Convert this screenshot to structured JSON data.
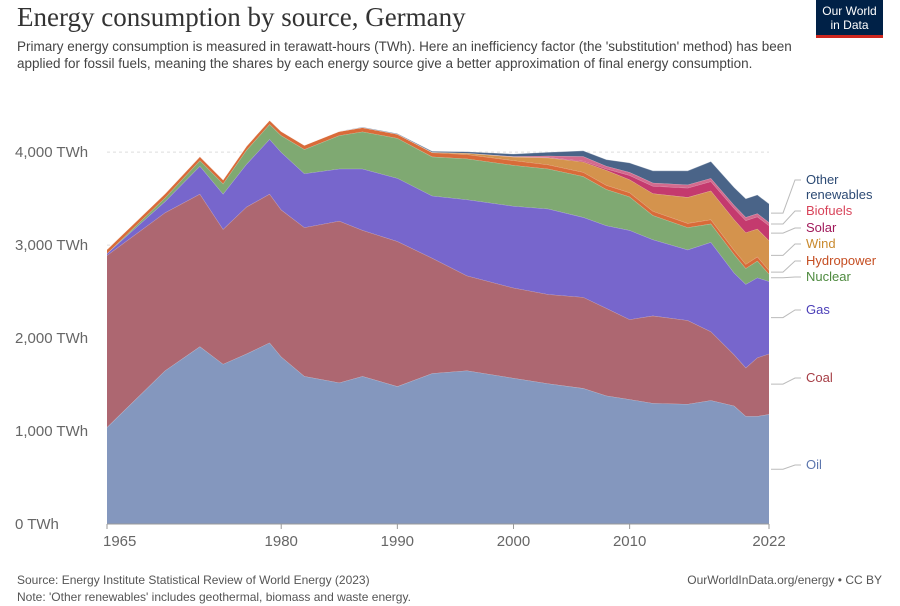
{
  "header": {
    "title": "Energy consumption by source, Germany",
    "subtitle": "Primary energy consumption is measured in terawatt-hours (TWh). Here an inefficiency factor (the 'substitution' method) has been applied for fossil fuels, meaning the shares by each energy source give a better approximation of final energy consumption.",
    "logo_line1": "Our World",
    "logo_line2": "in Data"
  },
  "footer": {
    "source": "Source: Energy Institute Statistical Review of World Energy (2023)",
    "note": "Note: 'Other renewables' includes geothermal, biomass and waste energy.",
    "credit": "OurWorldInData.org/energy • CC BY"
  },
  "chart_data": {
    "type": "area",
    "stacked": true,
    "title": "Energy consumption by source, Germany",
    "ylim": [
      0,
      4400
    ],
    "yticks": [
      0,
      1000,
      2000,
      3000,
      4000
    ],
    "ytick_labels": [
      "0 TWh",
      "1,000 TWh",
      "2,000 TWh",
      "3,000 TWh",
      "4,000 TWh"
    ],
    "xlim": [
      1965,
      2022
    ],
    "xticks": [
      1965,
      1980,
      1990,
      2000,
      2010,
      2022
    ],
    "xtick_labels": [
      "1965",
      "1980",
      "1990",
      "2000",
      "2010",
      "2022"
    ],
    "grid": "horizontal dashed",
    "legend": "right, labels at series ends",
    "x": [
      1965,
      1970,
      1973,
      1975,
      1977,
      1979,
      1980,
      1982,
      1985,
      1987,
      1990,
      1993,
      1996,
      2000,
      2003,
      2006,
      2008,
      2010,
      2012,
      2015,
      2017,
      2019,
      2020,
      2021,
      2022
    ],
    "series": [
      {
        "name": "Oil",
        "color": "#8497BE",
        "values": [
          1040,
          1650,
          1910,
          1720,
          1830,
          1950,
          1800,
          1590,
          1520,
          1590,
          1480,
          1620,
          1650,
          1570,
          1510,
          1460,
          1380,
          1340,
          1300,
          1290,
          1330,
          1270,
          1160,
          1160,
          1180
        ]
      },
      {
        "name": "Coal",
        "color": "#AD6771",
        "values": [
          1850,
          1700,
          1640,
          1450,
          1580,
          1600,
          1580,
          1600,
          1740,
          1570,
          1560,
          1240,
          1020,
          970,
          960,
          980,
          940,
          860,
          940,
          900,
          740,
          550,
          520,
          630,
          650
        ]
      },
      {
        "name": "Gas",
        "color": "#7766CC",
        "values": [
          20,
          120,
          300,
          380,
          460,
          590,
          620,
          580,
          560,
          660,
          680,
          670,
          820,
          880,
          920,
          860,
          890,
          960,
          820,
          760,
          960,
          880,
          900,
          860,
          780
        ]
      },
      {
        "name": "Nuclear",
        "color": "#7FA972",
        "values": [
          0,
          40,
          60,
          110,
          150,
          160,
          180,
          260,
          360,
          400,
          430,
          420,
          440,
          440,
          430,
          440,
          390,
          360,
          260,
          240,
          200,
          200,
          170,
          180,
          80
        ]
      },
      {
        "name": "Hydropower",
        "color": "#D96B39",
        "values": [
          45,
          45,
          45,
          45,
          45,
          45,
          45,
          45,
          45,
          45,
          45,
          45,
          45,
          50,
          45,
          45,
          45,
          45,
          45,
          45,
          45,
          45,
          45,
          45,
          40
        ]
      },
      {
        "name": "Wind",
        "color": "#D4934D",
        "values": [
          0,
          0,
          0,
          0,
          0,
          0,
          0,
          0,
          0,
          0,
          0,
          5,
          15,
          40,
          75,
          110,
          160,
          140,
          190,
          280,
          310,
          330,
          340,
          300,
          320
        ]
      },
      {
        "name": "Solar",
        "color": "#C43A6E",
        "values": [
          0,
          0,
          0,
          0,
          0,
          0,
          0,
          0,
          0,
          0,
          0,
          0,
          0,
          0,
          5,
          10,
          15,
          45,
          80,
          100,
          100,
          120,
          130,
          130,
          160
        ]
      },
      {
        "name": "Biofuels",
        "color": "#D36B8E",
        "values": [
          0,
          0,
          0,
          0,
          0,
          0,
          0,
          0,
          0,
          0,
          0,
          0,
          0,
          5,
          15,
          50,
          30,
          35,
          35,
          35,
          35,
          35,
          35,
          35,
          35
        ]
      },
      {
        "name": "Other renewables",
        "color": "#4A6488",
        "values": [
          0,
          0,
          0,
          0,
          0,
          0,
          0,
          0,
          0,
          5,
          5,
          10,
          15,
          25,
          40,
          60,
          70,
          100,
          130,
          150,
          180,
          190,
          200,
          200,
          200
        ]
      }
    ],
    "legend_labels": [
      {
        "name": "Other",
        "color": "#2C4A74"
      },
      {
        "name": "renewables",
        "color": "#2C4A74"
      },
      {
        "name": "Biofuels",
        "color": "#D8445A"
      },
      {
        "name": "Solar",
        "color": "#A0195A"
      },
      {
        "name": "Wind",
        "color": "#C98A2E"
      },
      {
        "name": "Hydropower",
        "color": "#C54E22"
      },
      {
        "name": "Nuclear",
        "color": "#4E8A3F"
      },
      {
        "name": "Gas",
        "color": "#4B3FB8"
      },
      {
        "name": "Coal",
        "color": "#A63D45"
      },
      {
        "name": "Oil",
        "color": "#5C76AE"
      }
    ]
  }
}
